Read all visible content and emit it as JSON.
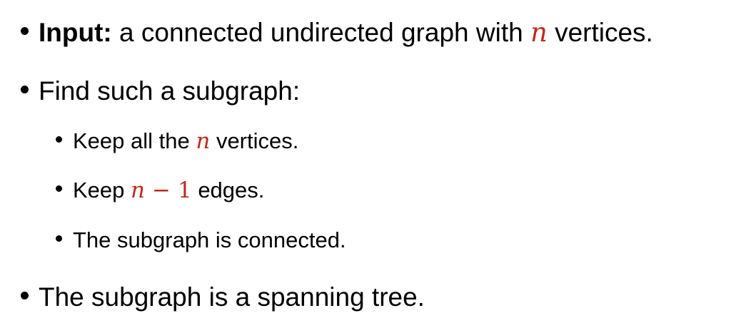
{
  "bullets": {
    "input": {
      "label": "Input:",
      "text_before": " a connected undirected graph with ",
      "var": "n",
      "text_after": " vertices."
    },
    "find": {
      "text": "Find such a subgraph:"
    },
    "keep_vertices": {
      "text_before": "Keep all the ",
      "var": "n",
      "text_after": " vertices."
    },
    "keep_edges": {
      "text_before": "Keep ",
      "var": "n",
      "op": "−",
      "num": "1",
      "text_after": " edges."
    },
    "connected": {
      "text": "The subgraph is connected."
    },
    "spanning": {
      "text": "The subgraph is a spanning tree."
    }
  },
  "colors": {
    "math": "#c0281e",
    "text": "#000000",
    "background": "#ffffff"
  }
}
